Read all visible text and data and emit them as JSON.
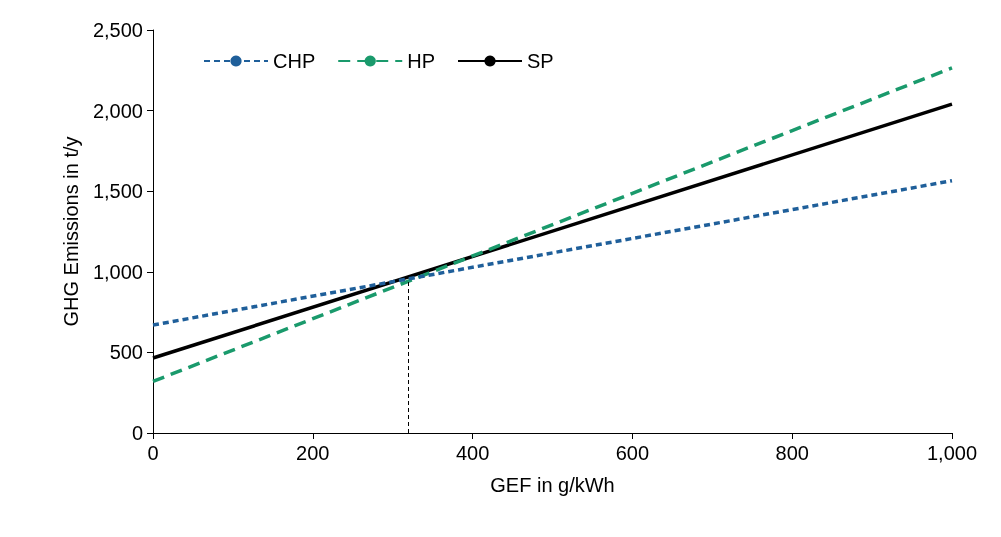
{
  "chart_data": {
    "type": "line",
    "xlabel": "GEF in g/kWh",
    "ylabel": "GHG Emissions in t/y",
    "x": [
      0,
      1000
    ],
    "series": [
      {
        "name": "CHP",
        "color": "#1f5f9a",
        "values": [
          670,
          1565
        ],
        "line_style": "dotted"
      },
      {
        "name": "HP",
        "color": "#1a9a6c",
        "values": [
          320,
          2265
        ],
        "line_style": "dashed"
      },
      {
        "name": "SP",
        "color": "#000000",
        "values": [
          465,
          2040
        ],
        "line_style": "solid"
      }
    ],
    "xlim": [
      0,
      1000
    ],
    "xticks": [
      0,
      200,
      400,
      600,
      800,
      {
        "value": 1000,
        "label": "1,000"
      }
    ],
    "ylim": [
      0,
      2500
    ],
    "yticks": [
      0,
      500,
      {
        "value": 1000,
        "label": "1,000"
      },
      {
        "value": 1500,
        "label": "1,500"
      },
      {
        "value": 2000,
        "label": "2,000"
      },
      {
        "value": 2500,
        "label": "2,500"
      }
    ],
    "grid": false,
    "legend": "top left",
    "marker": "none",
    "ref_lines": [
      {
        "axis": "x",
        "value": 320,
        "color": "#000000",
        "line_style": "dashed"
      }
    ]
  }
}
